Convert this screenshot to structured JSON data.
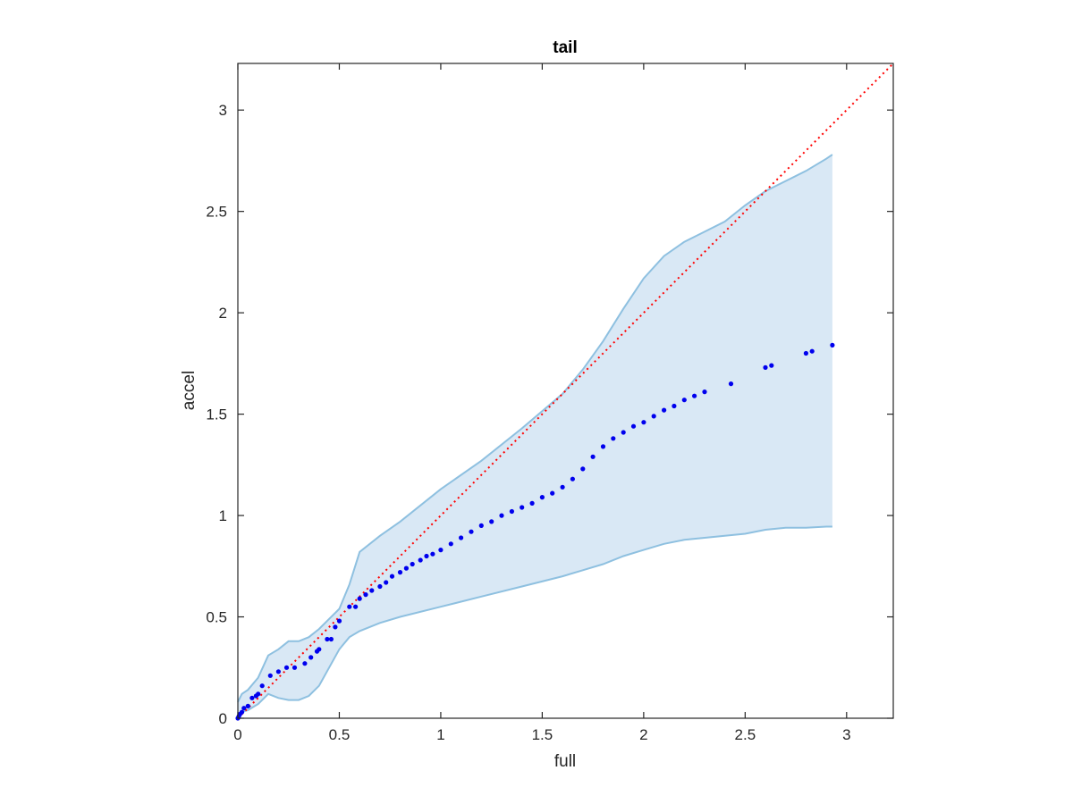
{
  "chart_data": {
    "type": "scatter",
    "title": "tail",
    "xlabel": "full",
    "ylabel": "accel",
    "xlim": [
      0,
      3.23
    ],
    "ylim": [
      0,
      3.23
    ],
    "xticks": [
      0,
      0.5,
      1,
      1.5,
      2,
      2.5,
      3
    ],
    "yticks": [
      0,
      0.5,
      1,
      1.5,
      2,
      2.5,
      3
    ],
    "xtick_labels": [
      "0",
      "0.5",
      "1",
      "1.5",
      "2",
      "2.5",
      "3"
    ],
    "ytick_labels": [
      "0",
      "0.5",
      "1",
      "1.5",
      "2",
      "2.5",
      "3"
    ],
    "grid": false,
    "colors": {
      "points": "#0000ee",
      "reference_line": "#ff0000",
      "band_fill": "#d9e8f5",
      "band_edge": "#8ec0e0",
      "axes": "#262626"
    },
    "reference_line": {
      "style": "dotted",
      "x": [
        0,
        3.23
      ],
      "y": [
        0,
        3.23
      ]
    },
    "band": {
      "x": [
        0,
        0.02,
        0.05,
        0.1,
        0.15,
        0.2,
        0.25,
        0.3,
        0.35,
        0.4,
        0.45,
        0.5,
        0.55,
        0.6,
        0.7,
        0.8,
        1.0,
        1.2,
        1.4,
        1.6,
        1.7,
        1.8,
        1.9,
        2.0,
        2.1,
        2.2,
        2.3,
        2.4,
        2.5,
        2.6,
        2.7,
        2.8,
        2.9,
        2.93
      ],
      "upper": [
        0.08,
        0.12,
        0.14,
        0.2,
        0.31,
        0.34,
        0.38,
        0.38,
        0.4,
        0.44,
        0.49,
        0.54,
        0.66,
        0.82,
        0.9,
        0.97,
        1.13,
        1.27,
        1.43,
        1.6,
        1.72,
        1.86,
        2.02,
        2.17,
        2.28,
        2.35,
        2.4,
        2.45,
        2.53,
        2.6,
        2.65,
        2.7,
        2.76,
        2.78
      ],
      "lower": [
        0.0,
        0.03,
        0.04,
        0.07,
        0.12,
        0.1,
        0.09,
        0.09,
        0.11,
        0.16,
        0.25,
        0.34,
        0.4,
        0.43,
        0.47,
        0.5,
        0.55,
        0.6,
        0.65,
        0.7,
        0.73,
        0.76,
        0.8,
        0.83,
        0.86,
        0.88,
        0.89,
        0.9,
        0.91,
        0.93,
        0.94,
        0.94,
        0.945,
        0.945
      ]
    },
    "series": [
      {
        "x": [
          0.0,
          0.005,
          0.01,
          0.02,
          0.03,
          0.05,
          0.07,
          0.09,
          0.1,
          0.12,
          0.16,
          0.2,
          0.24,
          0.28,
          0.33,
          0.36,
          0.39,
          0.4,
          0.44,
          0.46,
          0.48,
          0.5,
          0.55,
          0.58,
          0.6,
          0.63,
          0.66,
          0.7,
          0.73,
          0.76,
          0.8,
          0.83,
          0.86,
          0.9,
          0.93,
          0.96,
          1.0,
          1.05,
          1.1,
          1.15,
          1.2,
          1.25,
          1.3,
          1.35,
          1.4,
          1.45,
          1.5,
          1.55,
          1.6,
          1.65,
          1.7,
          1.75,
          1.8,
          1.85,
          1.9,
          1.95,
          2.0,
          2.05,
          2.1,
          2.15,
          2.2,
          2.25,
          2.3,
          2.43,
          2.6,
          2.63,
          2.8,
          2.83,
          2.93
        ],
        "y": [
          0.0,
          0.01,
          0.02,
          0.03,
          0.05,
          0.06,
          0.1,
          0.11,
          0.12,
          0.16,
          0.21,
          0.23,
          0.25,
          0.25,
          0.27,
          0.3,
          0.33,
          0.34,
          0.39,
          0.39,
          0.45,
          0.48,
          0.55,
          0.55,
          0.59,
          0.61,
          0.63,
          0.65,
          0.67,
          0.7,
          0.72,
          0.74,
          0.76,
          0.78,
          0.8,
          0.81,
          0.83,
          0.86,
          0.89,
          0.92,
          0.95,
          0.97,
          1.0,
          1.02,
          1.04,
          1.06,
          1.09,
          1.11,
          1.14,
          1.18,
          1.23,
          1.29,
          1.34,
          1.38,
          1.41,
          1.44,
          1.46,
          1.49,
          1.52,
          1.54,
          1.57,
          1.59,
          1.61,
          1.65,
          1.73,
          1.74,
          1.8,
          1.81,
          1.84
        ]
      }
    ]
  }
}
